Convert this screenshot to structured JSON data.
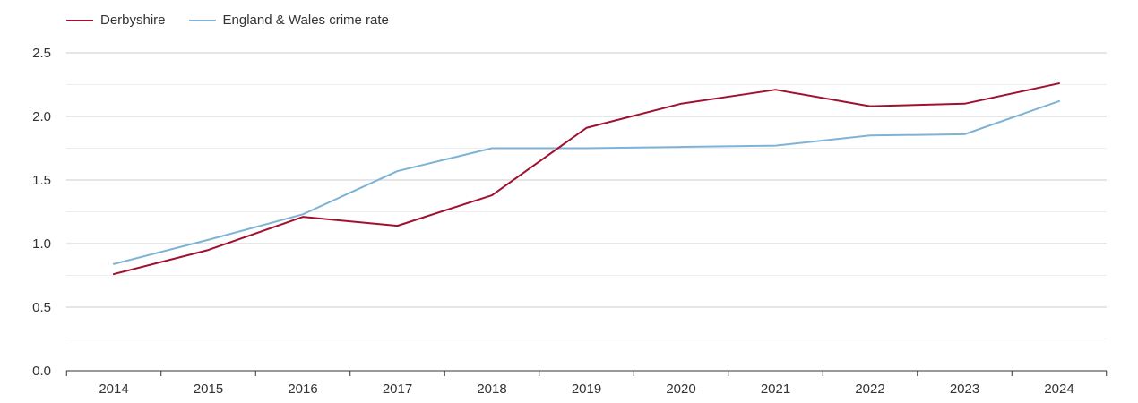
{
  "chart_data": {
    "type": "line",
    "title": "",
    "xlabel": "",
    "ylabel": "",
    "categories": [
      "2014",
      "2015",
      "2016",
      "2017",
      "2018",
      "2019",
      "2020",
      "2021",
      "2022",
      "2023",
      "2024"
    ],
    "ylim": [
      0,
      2.5
    ],
    "yticks": [
      0.0,
      0.5,
      1.0,
      1.5,
      2.0,
      2.5
    ],
    "ytick_labels": [
      "0.0",
      "0.5",
      "1.0",
      "1.5",
      "2.0",
      "2.5"
    ],
    "grid": true,
    "legend_position": "top-left",
    "series": [
      {
        "name": "Derbyshire",
        "color": "#a0102f",
        "values": [
          0.76,
          0.95,
          1.21,
          1.14,
          1.38,
          1.91,
          2.1,
          2.21,
          2.08,
          2.1,
          2.26
        ]
      },
      {
        "name": "England & Wales crime rate",
        "color": "#7fb3d5",
        "values": [
          0.84,
          1.03,
          1.23,
          1.57,
          1.75,
          1.75,
          1.76,
          1.77,
          1.85,
          1.86,
          2.12
        ]
      }
    ]
  }
}
